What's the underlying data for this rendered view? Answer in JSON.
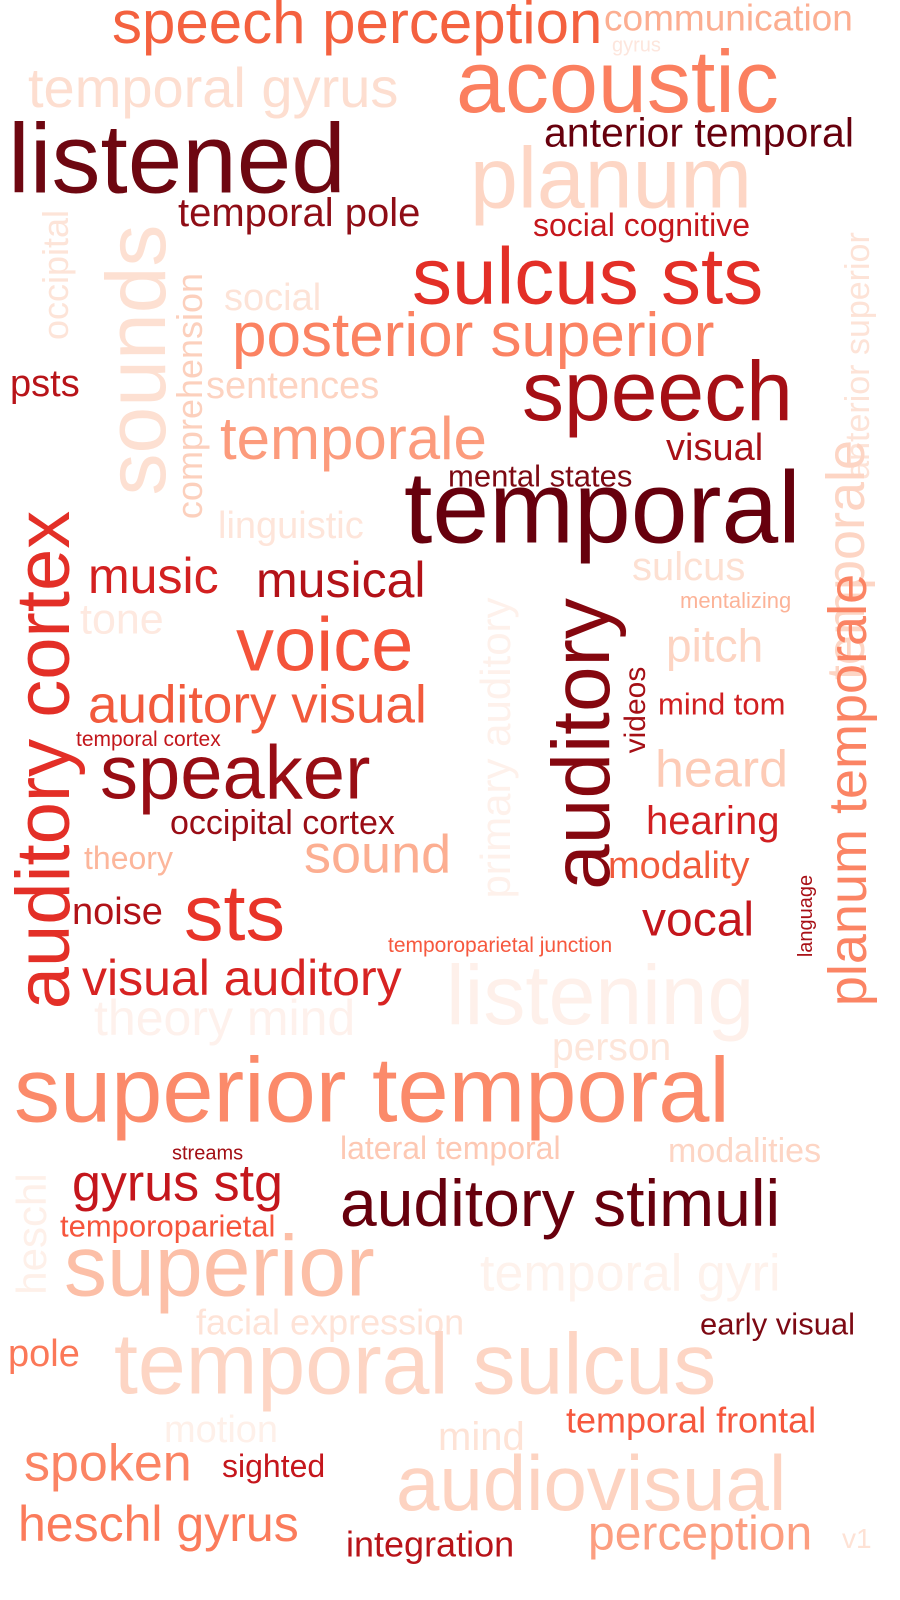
{
  "words": [
    {
      "text": "speech perception",
      "color": "#f4613f"
    },
    {
      "text": "communication",
      "color": "#fcae91"
    },
    {
      "text": "gyrus",
      "color": "#fde6dd"
    },
    {
      "text": "temporal gyrus",
      "color": "#fdded0"
    },
    {
      "text": "acoustic",
      "color": "#fb7f5f"
    },
    {
      "text": "anterior temporal",
      "color": "#67000d"
    },
    {
      "text": "listened",
      "color": "#6e0711"
    },
    {
      "text": "planum",
      "color": "#fdd6c5"
    },
    {
      "text": "temporal pole",
      "color": "#8f0d16"
    },
    {
      "text": "social cognitive",
      "color": "#c5161c"
    },
    {
      "text": "sulcus sts",
      "color": "#e32f27"
    },
    {
      "text": "social",
      "color": "#fde3d7"
    },
    {
      "text": "posterior superior",
      "color": "#fb8262"
    },
    {
      "text": "psts",
      "color": "#b81419"
    },
    {
      "text": "speech",
      "color": "#a50f15"
    },
    {
      "text": "sentences",
      "color": "#fdd3c1"
    },
    {
      "text": "temporale",
      "color": "#fc9b7c"
    },
    {
      "text": "visual",
      "color": "#a81016"
    },
    {
      "text": "mental states",
      "color": "#7d0913"
    },
    {
      "text": "temporal",
      "color": "#67000d"
    },
    {
      "text": "linguistic",
      "color": "#fee5da"
    },
    {
      "text": "music",
      "color": "#d32020"
    },
    {
      "text": "musical",
      "color": "#b31218"
    },
    {
      "text": "sulcus",
      "color": "#fde0d2"
    },
    {
      "text": "mentalizing",
      "color": "#fcb398"
    },
    {
      "text": "tone",
      "color": "#fee9e0"
    },
    {
      "text": "voice",
      "color": "#f4533a"
    },
    {
      "text": "pitch",
      "color": "#fdd4c2"
    },
    {
      "text": "auditory visual",
      "color": "#f25a3c"
    },
    {
      "text": "mind tom",
      "color": "#d11f21"
    },
    {
      "text": "temporal cortex",
      "color": "#c2161b"
    },
    {
      "text": "speaker",
      "color": "#980d14"
    },
    {
      "text": "heard",
      "color": "#fdcbb6"
    },
    {
      "text": "occipital cortex",
      "color": "#990c15"
    },
    {
      "text": "hearing",
      "color": "#d11f21"
    },
    {
      "text": "theory",
      "color": "#fcb69b"
    },
    {
      "text": "sound",
      "color": "#fcae91"
    },
    {
      "text": "modality",
      "color": "#f05a3b"
    },
    {
      "text": "noise",
      "color": "#b11218"
    },
    {
      "text": "sts",
      "color": "#e83429"
    },
    {
      "text": "vocal",
      "color": "#c4161c"
    },
    {
      "text": "temporoparietal junction",
      "color": "#f6583e"
    },
    {
      "text": "visual auditory",
      "color": "#d72322"
    },
    {
      "text": "theory mind",
      "color": "#fef1ec"
    },
    {
      "text": "listening",
      "color": "#fef0ea"
    },
    {
      "text": "person",
      "color": "#fde5d9"
    },
    {
      "text": "superior temporal",
      "color": "#fb8a6a"
    },
    {
      "text": "streams",
      "color": "#a30f15"
    },
    {
      "text": "lateral temporal",
      "color": "#fdc8b3"
    },
    {
      "text": "modalities",
      "color": "#fdd5c4"
    },
    {
      "text": "gyrus stg",
      "color": "#c4161c"
    },
    {
      "text": "auditory stimuli",
      "color": "#67000d"
    },
    {
      "text": "temporoparietal",
      "color": "#f6553c"
    },
    {
      "text": "superior",
      "color": "#fcbfa7"
    },
    {
      "text": "temporal gyri",
      "color": "#fef2ec"
    },
    {
      "text": "facial expression",
      "color": "#fee3d7"
    },
    {
      "text": "early visual",
      "color": "#7d0913"
    },
    {
      "text": "pole",
      "color": "#fb7858"
    },
    {
      "text": "temporal sulcus",
      "color": "#fdd5c4"
    },
    {
      "text": "motion",
      "color": "#fef0e9"
    },
    {
      "text": "temporal frontal",
      "color": "#f6583e"
    },
    {
      "text": "mind",
      "color": "#fee3d6"
    },
    {
      "text": "spoken",
      "color": "#fb8464"
    },
    {
      "text": "sighted",
      "color": "#c5161c"
    },
    {
      "text": "audiovisual",
      "color": "#fdd3c1"
    },
    {
      "text": "heschl gyrus",
      "color": "#fb7b5b"
    },
    {
      "text": "integration",
      "color": "#b81419"
    },
    {
      "text": "perception",
      "color": "#fc9e80"
    },
    {
      "text": "v1",
      "color": "#fee2d5"
    }
  ],
  "vertical_words": [
    {
      "text": "occipital",
      "color": "#fde4d8"
    },
    {
      "text": "sounds",
      "color": "#fde0d2"
    },
    {
      "text": "comprehension",
      "color": "#fcd0bd"
    },
    {
      "text": "auditory cortex",
      "color": "#e32f27"
    },
    {
      "text": "anterior superior",
      "color": "#fde3d7"
    },
    {
      "text": "temporale",
      "color": "#fdd5c4"
    },
    {
      "text": "primary auditory",
      "color": "#fef1eb"
    },
    {
      "text": "auditory",
      "color": "#85070f"
    },
    {
      "text": "videos",
      "color": "#a50f15"
    },
    {
      "text": "planum temporale",
      "color": "#fb8464"
    },
    {
      "text": "language",
      "color": "#a81016"
    },
    {
      "text": "heschl",
      "color": "#fef0e9"
    }
  ]
}
